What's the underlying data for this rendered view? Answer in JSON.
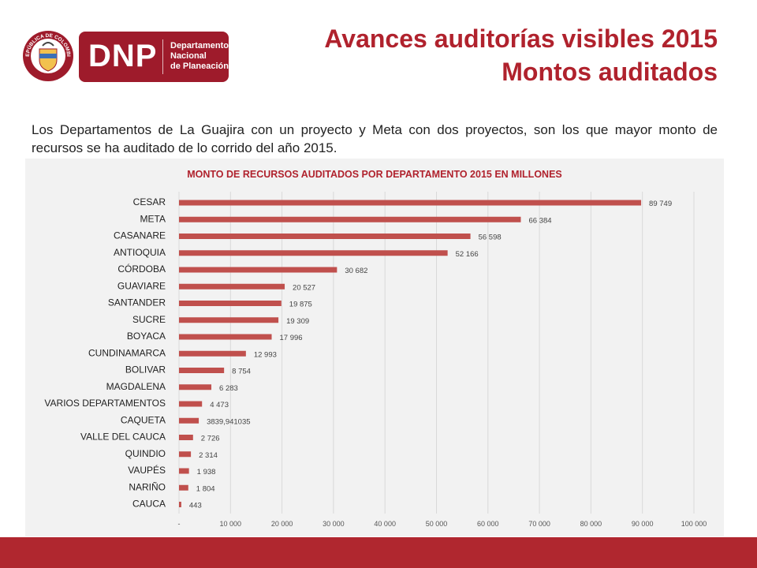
{
  "header": {
    "logo": {
      "seal_text": "REPÚBLICA DE COLOMBIA",
      "brand": "DNP",
      "subtitle_lines": [
        "Departamento",
        "Nacional",
        "de Planeación"
      ]
    },
    "title_line1": "Avances auditorías visibles 2015",
    "title_line2": "Montos auditados"
  },
  "intro_text": "Los Departamentos de La Guajira con un proyecto y Meta con dos proyectos, son los que mayor monto de recursos se ha auditado de lo corrido del año 2015.",
  "colors": {
    "accent": "#b0222d",
    "bar": "#c0504d",
    "panel_bg": "#f2f2f2",
    "footer": "#b0272f"
  },
  "chart_data": {
    "type": "bar",
    "orientation": "horizontal",
    "title": "MONTO DE RECURSOS AUDITADOS POR DEPARTAMENTO 2015 EN MILLONES",
    "categories": [
      "CESAR",
      "META",
      "CASANARE",
      "ANTIOQUIA",
      "CÓRDOBA",
      "GUAVIARE",
      "SANTANDER",
      "SUCRE",
      "BOYACA",
      "CUNDINAMARCA",
      "BOLIVAR",
      "MAGDALENA",
      "VARIOS DEPARTAMENTOS",
      "CAQUETA",
      "VALLE DEL CAUCA",
      "QUINDIO",
      "VAUPÉS",
      "NARIÑO",
      "CAUCA"
    ],
    "values": [
      89749,
      66384,
      56598,
      52166,
      30682,
      20527,
      19875,
      19309,
      17996,
      12993,
      8754,
      6283,
      4473,
      3839.941035,
      2726,
      2314,
      1938,
      1804,
      443
    ],
    "value_labels": [
      "89 749",
      "66 384",
      "56 598",
      "52 166",
      "30 682",
      "20 527",
      "19 875",
      "19 309",
      "17 996",
      "12 993",
      "8 754",
      "6 283",
      "4 473",
      "3839,941035",
      "2 726",
      "2 314",
      "1 938",
      "1 804",
      "443"
    ],
    "x_ticks": [
      0,
      10000,
      20000,
      30000,
      40000,
      50000,
      60000,
      70000,
      80000,
      90000,
      100000
    ],
    "x_tick_labels": [
      "-",
      "10 000",
      "20 000",
      "30 000",
      "40 000",
      "50 000",
      "60 000",
      "70 000",
      "80 000",
      "90 000",
      "100 000"
    ],
    "xlim": [
      0,
      100000
    ],
    "grid": true,
    "xlabel": "",
    "ylabel": ""
  }
}
